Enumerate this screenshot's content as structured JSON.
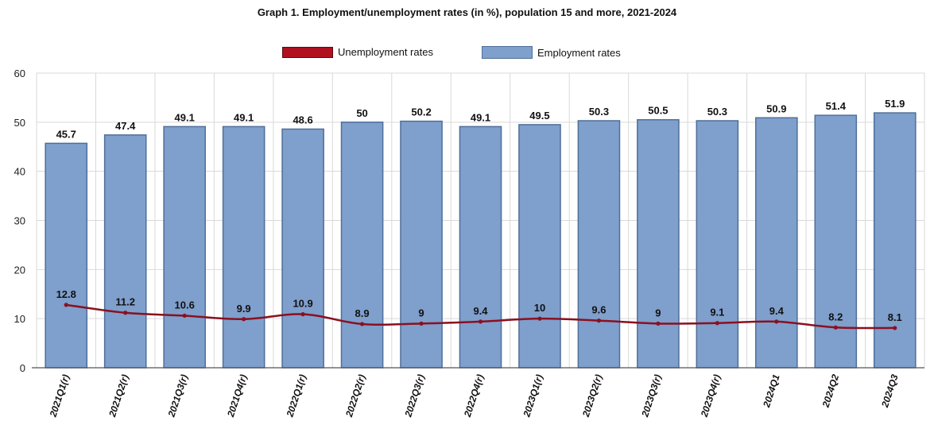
{
  "title": "Graph 1. Employment/unemployment rates (in %), population 15 and more, 2021-2024",
  "legend": {
    "unemployment": "Unemployment rates",
    "employment": "Employment rates"
  },
  "colors": {
    "employment_bar": "#7f9fcc",
    "employment_bar_border": "#4f6f9a",
    "unemployment_line": "#8a1020",
    "grid": "#d9d9d9"
  },
  "chart_data": {
    "type": "bar",
    "title": "Graph 1. Employment/unemployment rates (in %), population 15 and more, 2021-2024",
    "xlabel": "",
    "ylabel": "",
    "ylim": [
      0,
      60
    ],
    "yticks": [
      0,
      10,
      20,
      30,
      40,
      50,
      60
    ],
    "grid": true,
    "legend_position": "top-center",
    "categories": [
      "2021Q1(r)",
      "2021Q2(r)",
      "2021Q3(r)",
      "2021Q4(r)",
      "2022Q1(r)",
      "2022Q2(r)",
      "2022Q3(r)",
      "2022Q4(r)",
      "2023Q1(r)",
      "2023Q2(r)",
      "2023Q3(r)",
      "2023Q4(r)",
      "2024Q1",
      "2024Q2",
      "2024Q3"
    ],
    "series": [
      {
        "name": "Employment rates",
        "type": "bar",
        "values": [
          45.7,
          47.4,
          49.1,
          49.1,
          48.6,
          50,
          50.2,
          49.1,
          49.5,
          50.3,
          50.5,
          50.3,
          50.9,
          51.4,
          51.9
        ],
        "labels": [
          "45.7",
          "47.4",
          "49.1",
          "49.1",
          "48.6",
          "50",
          "50.2",
          "49.1",
          "49.5",
          "50.3",
          "50.5",
          "50.3",
          "50.9",
          "51.4",
          "51.9"
        ]
      },
      {
        "name": "Unemployment rates",
        "type": "line",
        "values": [
          12.8,
          11.2,
          10.6,
          9.9,
          10.9,
          8.9,
          9,
          9.4,
          10,
          9.6,
          9,
          9.1,
          9.4,
          8.2,
          8.1
        ],
        "labels": [
          "12.8",
          "11.2",
          "10.6",
          "9.9",
          "10.9",
          "8.9",
          "9",
          "9.4",
          "10",
          "9.6",
          "9",
          "9.1",
          "9.4",
          "8.2",
          "8.1"
        ]
      }
    ]
  }
}
